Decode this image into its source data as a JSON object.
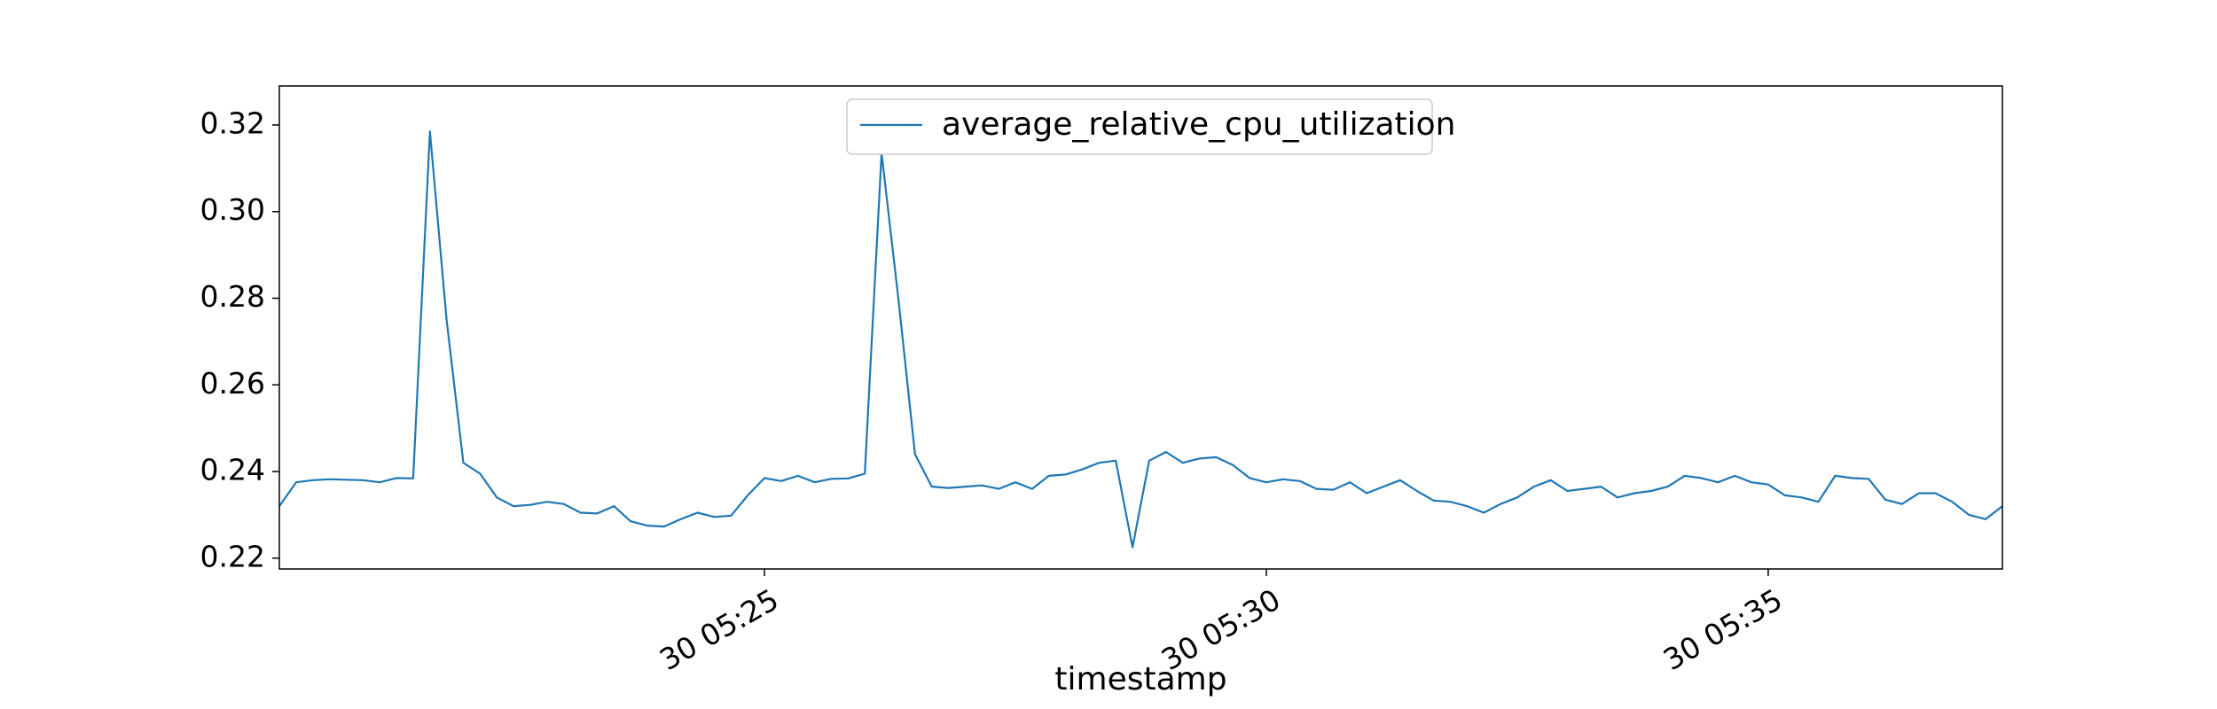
{
  "chart_data": {
    "type": "line",
    "xlabel": "timestamp",
    "ylabel": "",
    "ylim": [
      0.2175,
      0.329
    ],
    "xlim": [
      "05:20:10",
      "05:37:20"
    ],
    "grid": false,
    "legend_position": "top-center",
    "x_ticks": [
      {
        "value": "05:25:00",
        "label": "30 05:25"
      },
      {
        "value": "05:30:00",
        "label": "30 05:30"
      },
      {
        "value": "05:35:00",
        "label": "30 05:35"
      }
    ],
    "y_ticks": [
      0.22,
      0.24,
      0.26,
      0.28,
      0.3,
      0.32
    ],
    "y_tick_labels": [
      "0.22",
      "0.24",
      "0.26",
      "0.28",
      "0.30",
      "0.32"
    ],
    "series": [
      {
        "name": "average_relative_cpu_utilization",
        "color": "#1f77b4",
        "x": [
          "05:20:10",
          "05:20:20",
          "05:20:30",
          "05:20:40",
          "05:20:50",
          "05:21:00",
          "05:21:10",
          "05:21:20",
          "05:21:30",
          "05:21:40",
          "05:21:50",
          "05:22:00",
          "05:22:10",
          "05:22:20",
          "05:22:30",
          "05:22:40",
          "05:22:50",
          "05:23:00",
          "05:23:10",
          "05:23:20",
          "05:23:30",
          "05:23:40",
          "05:23:50",
          "05:24:00",
          "05:24:10",
          "05:24:20",
          "05:24:30",
          "05:24:40",
          "05:24:50",
          "05:25:00",
          "05:25:10",
          "05:25:20",
          "05:25:30",
          "05:25:40",
          "05:25:50",
          "05:26:00",
          "05:26:10",
          "05:26:20",
          "05:26:30",
          "05:26:40",
          "05:26:50",
          "05:27:00",
          "05:27:10",
          "05:27:20",
          "05:27:30",
          "05:27:40",
          "05:27:50",
          "05:28:00",
          "05:28:10",
          "05:28:20",
          "05:28:30",
          "05:28:40",
          "05:28:50",
          "05:29:00",
          "05:29:10",
          "05:29:20",
          "05:29:30",
          "05:29:40",
          "05:29:50",
          "05:30:00",
          "05:30:10",
          "05:30:20",
          "05:30:30",
          "05:30:40",
          "05:30:50",
          "05:31:00",
          "05:31:10",
          "05:31:20",
          "05:31:30",
          "05:31:40",
          "05:31:50",
          "05:32:00",
          "05:32:10",
          "05:32:20",
          "05:32:30",
          "05:32:40",
          "05:32:50",
          "05:33:00",
          "05:33:10",
          "05:33:20",
          "05:33:30",
          "05:33:40",
          "05:33:50",
          "05:34:00",
          "05:34:10",
          "05:34:20",
          "05:34:30",
          "05:34:40",
          "05:34:50",
          "05:35:00",
          "05:35:10",
          "05:35:20",
          "05:35:30",
          "05:35:40",
          "05:35:50",
          "05:36:00",
          "05:36:10",
          "05:36:20",
          "05:36:30",
          "05:36:40",
          "05:36:50",
          "05:37:00",
          "05:37:10",
          "05:37:20"
        ],
        "values": [
          0.232,
          0.2375,
          0.238,
          0.2382,
          0.2381,
          0.238,
          0.2375,
          0.2385,
          0.2384,
          0.3185,
          0.275,
          0.242,
          0.2395,
          0.234,
          0.232,
          0.2323,
          0.233,
          0.2325,
          0.2305,
          0.2303,
          0.232,
          0.2285,
          0.2275,
          0.2273,
          0.229,
          0.2305,
          0.2295,
          0.2298,
          0.2345,
          0.2385,
          0.2378,
          0.239,
          0.2375,
          0.2383,
          0.2384,
          0.2395,
          0.3135,
          0.28,
          0.244,
          0.2365,
          0.2362,
          0.2365,
          0.2368,
          0.236,
          0.2375,
          0.236,
          0.239,
          0.2393,
          0.2405,
          0.242,
          0.2425,
          0.2225,
          0.2425,
          0.2445,
          0.242,
          0.243,
          0.2433,
          0.2415,
          0.2385,
          0.2375,
          0.2382,
          0.2378,
          0.236,
          0.2358,
          0.2375,
          0.235,
          0.2365,
          0.238,
          0.2355,
          0.2333,
          0.233,
          0.232,
          0.2305,
          0.2325,
          0.234,
          0.2365,
          0.238,
          0.2355,
          0.236,
          0.2365,
          0.234,
          0.235,
          0.2355,
          0.2365,
          0.239,
          0.2385,
          0.2375,
          0.239,
          0.2375,
          0.237,
          0.2345,
          0.234,
          0.233,
          0.239,
          0.2385,
          0.2383,
          0.2335,
          0.2325,
          0.235,
          0.235,
          0.233,
          0.23,
          0.229,
          0.232
        ]
      }
    ]
  }
}
